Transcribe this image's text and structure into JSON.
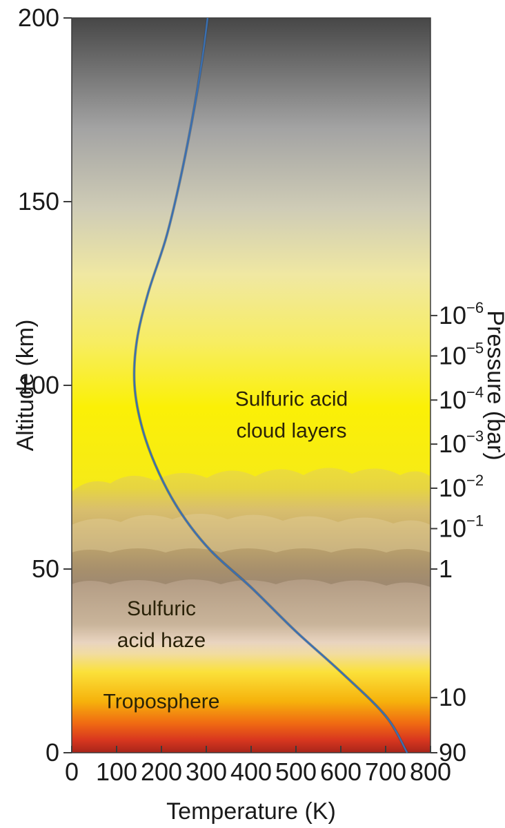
{
  "chart_data": {
    "type": "line",
    "title": "",
    "xlabel": "Temperature (K)",
    "ylabel": "Altitude (km)",
    "y2label": "Pressure (bar)",
    "xlim": [
      0,
      800
    ],
    "ylim": [
      0,
      200
    ],
    "x_ticks": [
      0,
      100,
      200,
      300,
      400,
      500,
      600,
      700,
      800
    ],
    "y_ticks": [
      0,
      50,
      100,
      150,
      200
    ],
    "pressure_ticks": [
      {
        "altitude": 0,
        "base": "90",
        "exp": ""
      },
      {
        "altitude": 15,
        "base": "10",
        "exp": ""
      },
      {
        "altitude": 50,
        "base": "1",
        "exp": ""
      },
      {
        "altitude": 61,
        "base": "10",
        "exp": "−1"
      },
      {
        "altitude": 72,
        "base": "10",
        "exp": "−2"
      },
      {
        "altitude": 84,
        "base": "10",
        "exp": "−3"
      },
      {
        "altitude": 96,
        "base": "10",
        "exp": "−4"
      },
      {
        "altitude": 108,
        "base": "10",
        "exp": "−5"
      },
      {
        "altitude": 119,
        "base": "10",
        "exp": "−6"
      }
    ],
    "series": [
      {
        "color": "#3a6fb0",
        "points": [
          {
            "x": 748,
            "y": 0
          },
          {
            "x": 700,
            "y": 10
          },
          {
            "x": 600,
            "y": 22
          },
          {
            "x": 500,
            "y": 33
          },
          {
            "x": 400,
            "y": 45
          },
          {
            "x": 310,
            "y": 55
          },
          {
            "x": 245,
            "y": 65
          },
          {
            "x": 195,
            "y": 76
          },
          {
            "x": 158,
            "y": 88
          },
          {
            "x": 140,
            "y": 100
          },
          {
            "x": 145,
            "y": 112
          },
          {
            "x": 170,
            "y": 125
          },
          {
            "x": 210,
            "y": 140
          },
          {
            "x": 240,
            "y": 155
          },
          {
            "x": 268,
            "y": 172
          },
          {
            "x": 290,
            "y": 188
          },
          {
            "x": 303,
            "y": 200
          }
        ]
      }
    ],
    "annotations": [
      {
        "lines": [
          "Sulfuric acid",
          "cloud layers"
        ],
        "x": 490,
        "y": 92
      },
      {
        "lines": [
          "Sulfuric",
          "acid haze"
        ],
        "x": 200,
        "y": 35
      },
      {
        "lines": [
          "Troposphere"
        ],
        "x": 200,
        "y": 14
      }
    ],
    "grid": false,
    "legend": "none"
  }
}
